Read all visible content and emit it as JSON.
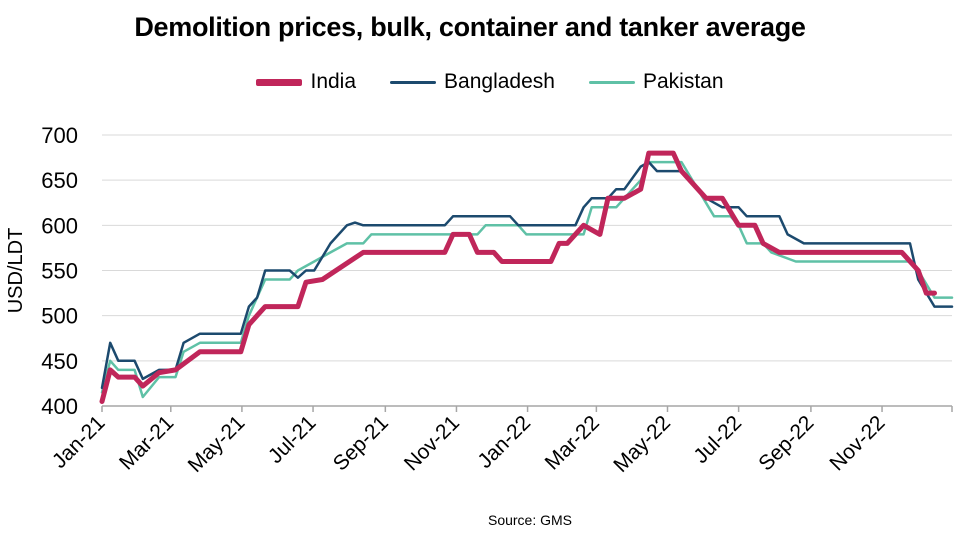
{
  "chart_data": {
    "type": "line",
    "title": "Demolition prices, bulk, container and tanker average",
    "ylabel": "USD/LDT",
    "xlabel": "",
    "source": "Source: GMS",
    "ylim": [
      400,
      700
    ],
    "yticks": [
      400,
      450,
      500,
      550,
      600,
      650,
      700
    ],
    "grid": true,
    "legend_position": "top",
    "xaxis": {
      "start": "2021-01",
      "end": "2022-12",
      "tick_labels": [
        "Jan-21",
        "Mar-21",
        "May-21",
        "Jul-21",
        "Sep-21",
        "Nov-21",
        "Jan-22",
        "Mar-22",
        "May-22",
        "Jul-22",
        "Sep-22",
        "Nov-22"
      ]
    },
    "series": [
      {
        "name": "India",
        "color": "#c0265a",
        "points": [
          [
            "2021-01-01",
            405
          ],
          [
            "2021-01-08",
            440
          ],
          [
            "2021-01-15",
            432
          ],
          [
            "2021-01-29",
            432
          ],
          [
            "2021-02-05",
            422
          ],
          [
            "2021-02-19",
            437
          ],
          [
            "2021-03-05",
            440
          ],
          [
            "2021-03-26",
            460
          ],
          [
            "2021-04-30",
            460
          ],
          [
            "2021-05-07",
            490
          ],
          [
            "2021-05-21",
            510
          ],
          [
            "2021-06-18",
            510
          ],
          [
            "2021-06-25",
            537
          ],
          [
            "2021-07-09",
            540
          ],
          [
            "2021-08-13",
            570
          ],
          [
            "2021-10-22",
            570
          ],
          [
            "2021-10-29",
            590
          ],
          [
            "2021-11-12",
            590
          ],
          [
            "2021-11-19",
            570
          ],
          [
            "2021-12-03",
            570
          ],
          [
            "2021-12-10",
            560
          ],
          [
            "2022-01-21",
            560
          ],
          [
            "2022-01-28",
            580
          ],
          [
            "2022-02-04",
            580
          ],
          [
            "2022-02-18",
            600
          ],
          [
            "2022-03-04",
            590
          ],
          [
            "2022-03-11",
            630
          ],
          [
            "2022-03-25",
            630
          ],
          [
            "2022-04-08",
            640
          ],
          [
            "2022-04-15",
            680
          ],
          [
            "2022-05-06",
            680
          ],
          [
            "2022-05-13",
            660
          ],
          [
            "2022-06-03",
            630
          ],
          [
            "2022-06-17",
            630
          ],
          [
            "2022-07-01",
            600
          ],
          [
            "2022-07-15",
            600
          ],
          [
            "2022-07-22",
            580
          ],
          [
            "2022-08-05",
            570
          ],
          [
            "2022-11-18",
            570
          ],
          [
            "2022-12-02",
            550
          ],
          [
            "2022-12-09",
            525
          ],
          [
            "2022-12-16",
            525
          ]
        ]
      },
      {
        "name": "Bangladesh",
        "color": "#1c4a6e",
        "points": [
          [
            "2021-01-01",
            420
          ],
          [
            "2021-01-08",
            470
          ],
          [
            "2021-01-15",
            450
          ],
          [
            "2021-01-29",
            450
          ],
          [
            "2021-02-05",
            430
          ],
          [
            "2021-02-19",
            440
          ],
          [
            "2021-03-05",
            440
          ],
          [
            "2021-03-12",
            470
          ],
          [
            "2021-03-26",
            480
          ],
          [
            "2021-04-30",
            480
          ],
          [
            "2021-05-07",
            510
          ],
          [
            "2021-05-14",
            520
          ],
          [
            "2021-05-21",
            550
          ],
          [
            "2021-06-11",
            550
          ],
          [
            "2021-06-18",
            542
          ],
          [
            "2021-06-25",
            550
          ],
          [
            "2021-07-02",
            550
          ],
          [
            "2021-07-16",
            580
          ],
          [
            "2021-07-30",
            600
          ],
          [
            "2021-08-06",
            603
          ],
          [
            "2021-08-13",
            600
          ],
          [
            "2021-10-22",
            600
          ],
          [
            "2021-10-29",
            610
          ],
          [
            "2021-12-17",
            610
          ],
          [
            "2021-12-24",
            600
          ],
          [
            "2022-02-11",
            600
          ],
          [
            "2022-02-18",
            620
          ],
          [
            "2022-02-25",
            630
          ],
          [
            "2022-03-11",
            630
          ],
          [
            "2022-03-18",
            640
          ],
          [
            "2022-03-25",
            640
          ],
          [
            "2022-04-08",
            665
          ],
          [
            "2022-04-15",
            670
          ],
          [
            "2022-04-22",
            660
          ],
          [
            "2022-05-13",
            660
          ],
          [
            "2022-05-27",
            640
          ],
          [
            "2022-06-03",
            630
          ],
          [
            "2022-06-17",
            620
          ],
          [
            "2022-07-01",
            620
          ],
          [
            "2022-07-08",
            610
          ],
          [
            "2022-08-05",
            610
          ],
          [
            "2022-08-12",
            590
          ],
          [
            "2022-08-26",
            580
          ],
          [
            "2022-11-25",
            580
          ],
          [
            "2022-12-02",
            540
          ],
          [
            "2022-12-16",
            510
          ],
          [
            "2022-12-31",
            510
          ]
        ]
      },
      {
        "name": "Pakistan",
        "color": "#5fc1a6",
        "points": [
          [
            "2021-01-01",
            415
          ],
          [
            "2021-01-08",
            450
          ],
          [
            "2021-01-15",
            440
          ],
          [
            "2021-01-29",
            440
          ],
          [
            "2021-02-05",
            410
          ],
          [
            "2021-02-19",
            432
          ],
          [
            "2021-03-05",
            432
          ],
          [
            "2021-03-12",
            460
          ],
          [
            "2021-03-26",
            470
          ],
          [
            "2021-04-30",
            470
          ],
          [
            "2021-05-07",
            500
          ],
          [
            "2021-05-21",
            540
          ],
          [
            "2021-06-11",
            540
          ],
          [
            "2021-06-18",
            550
          ],
          [
            "2021-07-02",
            560
          ],
          [
            "2021-07-16",
            570
          ],
          [
            "2021-07-30",
            580
          ],
          [
            "2021-08-13",
            580
          ],
          [
            "2021-08-20",
            590
          ],
          [
            "2021-11-19",
            590
          ],
          [
            "2021-11-26",
            600
          ],
          [
            "2021-12-24",
            600
          ],
          [
            "2021-12-31",
            590
          ],
          [
            "2022-02-18",
            590
          ],
          [
            "2022-02-25",
            620
          ],
          [
            "2022-03-18",
            620
          ],
          [
            "2022-04-01",
            640
          ],
          [
            "2022-04-08",
            650
          ],
          [
            "2022-04-15",
            670
          ],
          [
            "2022-05-13",
            670
          ],
          [
            "2022-05-27",
            640
          ],
          [
            "2022-06-10",
            610
          ],
          [
            "2022-06-24",
            610
          ],
          [
            "2022-07-01",
            600
          ],
          [
            "2022-07-08",
            580
          ],
          [
            "2022-07-22",
            580
          ],
          [
            "2022-07-29",
            570
          ],
          [
            "2022-08-19",
            560
          ],
          [
            "2022-11-25",
            560
          ],
          [
            "2022-12-02",
            550
          ],
          [
            "2022-12-16",
            520
          ],
          [
            "2022-12-31",
            520
          ]
        ]
      }
    ]
  }
}
